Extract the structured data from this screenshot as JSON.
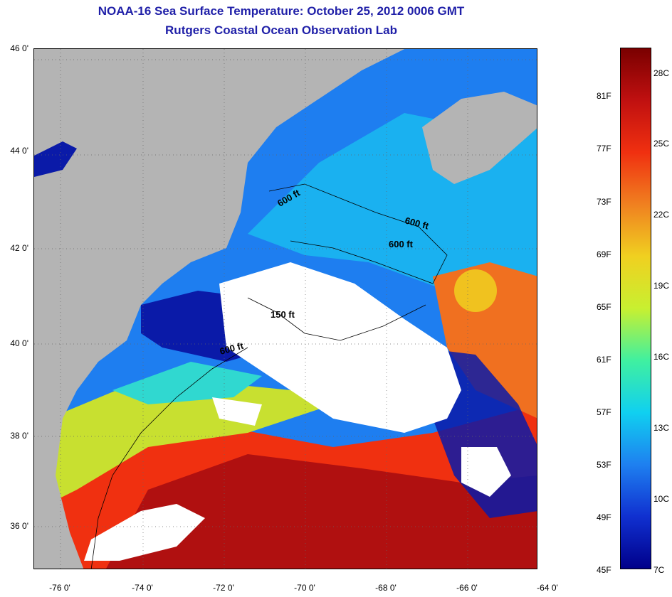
{
  "title": {
    "line1": "NOAA-16 Sea Surface Temperature:  October 25, 2012 0006 GMT",
    "line2": "Rutgers Coastal Ocean Observation Lab"
  },
  "map": {
    "latitude_labels": [
      "46 0'",
      "44 0'",
      "42 0'",
      "40 0'",
      "38 0'",
      "36 0'"
    ],
    "longitude_labels": [
      "-76 0'",
      "-74 0'",
      "-72 0'",
      "-70 0'",
      "-68 0'",
      "-66 0'",
      "-64 0'"
    ],
    "depth_labels": [
      "600 ft",
      "600 ft",
      "600 ft",
      "150 ft",
      "600 ft"
    ],
    "colors": {
      "land": "#b4b4b4",
      "cloud": "#ffffff",
      "cold": "#0a1aa8",
      "cool": "#1e7ef0",
      "mild": "#18d4e8",
      "warm": "#f0e020",
      "hot": "#f03010",
      "hottest": "#b01010"
    }
  },
  "colorbar": {
    "fahrenheit_labels": [
      "81F",
      "77F",
      "73F",
      "69F",
      "65F",
      "61F",
      "57F",
      "53F",
      "49F",
      "45F"
    ],
    "celsius_labels": [
      "28C",
      "25C",
      "22C",
      "19C",
      "16C",
      "13C",
      "10C",
      "7C"
    ],
    "gradient_colors": [
      "#7a0000",
      "#c01010",
      "#f03010",
      "#f08020",
      "#f0d020",
      "#c8f030",
      "#40f0a0",
      "#10d0f0",
      "#1e80f0",
      "#1030d0",
      "#00008a"
    ]
  }
}
